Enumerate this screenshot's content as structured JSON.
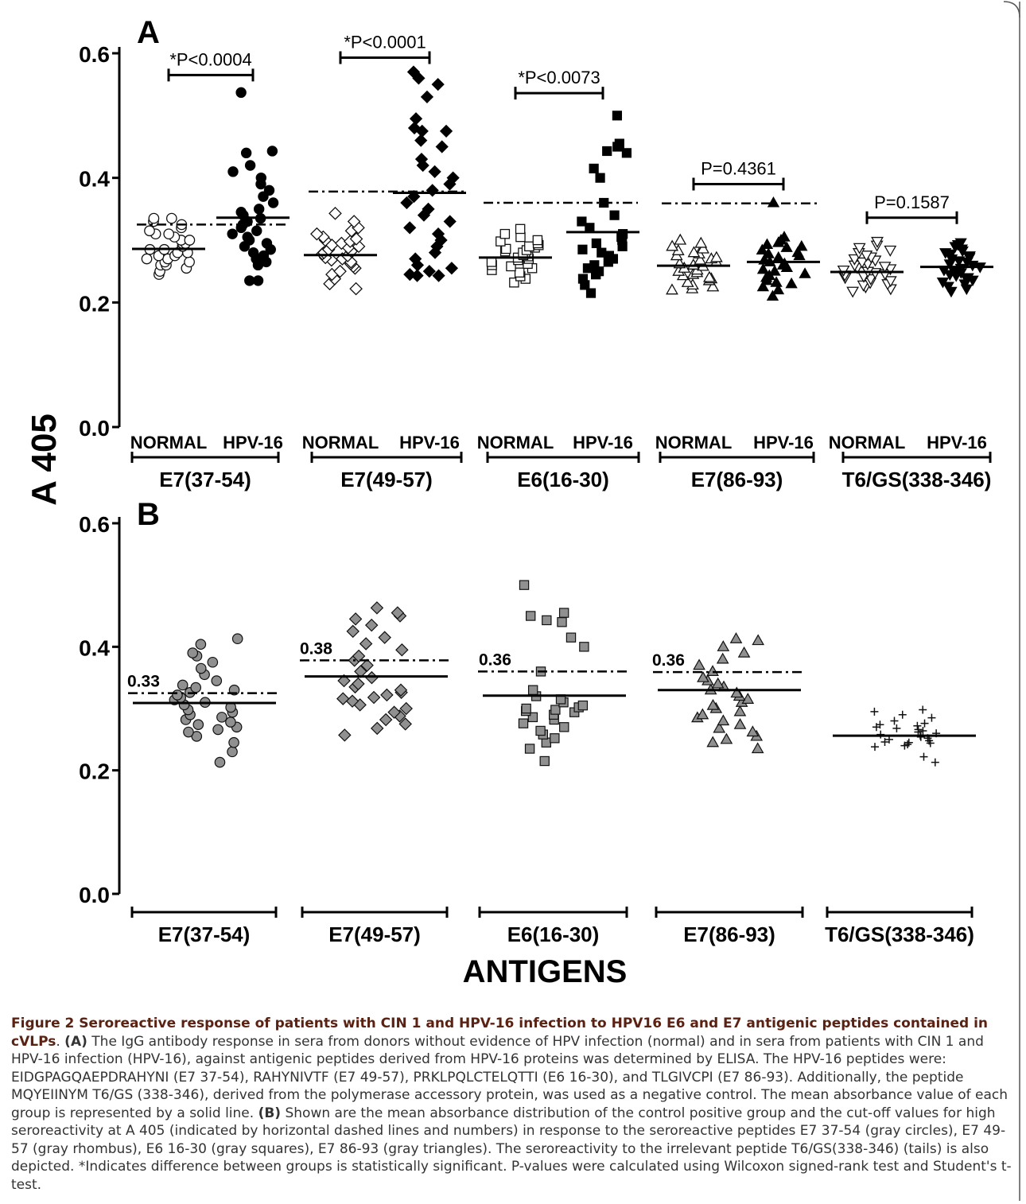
{
  "figure": {
    "ylabel": "A 405",
    "xlabel": "ANTIGENS"
  },
  "chart_data": [
    {
      "panel": "A",
      "type": "scatter",
      "ylim": [
        0.0,
        0.6
      ],
      "yticks": [
        "0.0",
        "0.2",
        "0.4",
        "0.6"
      ],
      "ylabel": "A 405",
      "group_labels": [
        "E7(37-54)",
        "E7(49-57)",
        "E6(16-30)",
        "E7(86-93)",
        "T6/GS(338-346)"
      ],
      "subgroup_labels": [
        "NORMAL",
        "HPV-16"
      ],
      "groups": [
        {
          "name": "E7(37-54)",
          "marker": "circle",
          "normal": [
            0.245,
            0.25,
            0.255,
            0.26,
            0.26,
            0.265,
            0.265,
            0.27,
            0.27,
            0.275,
            0.275,
            0.28,
            0.28,
            0.285,
            0.285,
            0.29,
            0.29,
            0.295,
            0.295,
            0.3,
            0.3,
            0.305,
            0.31,
            0.31,
            0.315,
            0.32,
            0.325,
            0.33,
            0.335,
            0.335
          ],
          "hpv16": [
            0.235,
            0.235,
            0.26,
            0.265,
            0.27,
            0.275,
            0.28,
            0.285,
            0.29,
            0.295,
            0.3,
            0.305,
            0.31,
            0.315,
            0.32,
            0.325,
            0.33,
            0.335,
            0.34,
            0.345,
            0.35,
            0.36,
            0.37,
            0.38,
            0.39,
            0.4,
            0.41,
            0.42,
            0.44,
            0.443,
            0.537
          ],
          "normal_mean": 0.286,
          "hpv16_mean": 0.336,
          "cutoff": 0.325,
          "pvalue": "*P<0.0004",
          "pvalue_y": 0.565
        },
        {
          "name": "E7(49-57)",
          "marker": "diamond",
          "normal": [
            0.222,
            0.23,
            0.238,
            0.245,
            0.25,
            0.255,
            0.258,
            0.262,
            0.265,
            0.268,
            0.27,
            0.272,
            0.275,
            0.278,
            0.28,
            0.282,
            0.285,
            0.288,
            0.29,
            0.292,
            0.295,
            0.298,
            0.3,
            0.302,
            0.305,
            0.31,
            0.315,
            0.32,
            0.33,
            0.343
          ],
          "hpv16": [
            0.243,
            0.243,
            0.245,
            0.25,
            0.255,
            0.26,
            0.27,
            0.28,
            0.29,
            0.3,
            0.31,
            0.32,
            0.33,
            0.34,
            0.35,
            0.36,
            0.37,
            0.38,
            0.39,
            0.4,
            0.41,
            0.42,
            0.43,
            0.45,
            0.46,
            0.475,
            0.475,
            0.48,
            0.495,
            0.53,
            0.55,
            0.56,
            0.57
          ],
          "normal_mean": 0.276,
          "hpv16_mean": 0.376,
          "cutoff": 0.378,
          "pvalue": "*P<0.0001",
          "pvalue_y": 0.593
        },
        {
          "name": "E6(16-30)",
          "marker": "square",
          "normal": [
            0.232,
            0.238,
            0.242,
            0.248,
            0.252,
            0.255,
            0.258,
            0.26,
            0.262,
            0.265,
            0.268,
            0.27,
            0.272,
            0.274,
            0.276,
            0.278,
            0.28,
            0.282,
            0.284,
            0.286,
            0.288,
            0.29,
            0.292,
            0.295,
            0.298,
            0.3,
            0.305,
            0.31,
            0.318
          ],
          "hpv16": [
            0.215,
            0.228,
            0.238,
            0.245,
            0.245,
            0.25,
            0.255,
            0.26,
            0.265,
            0.27,
            0.275,
            0.28,
            0.285,
            0.29,
            0.295,
            0.3,
            0.305,
            0.31,
            0.32,
            0.33,
            0.34,
            0.36,
            0.4,
            0.415,
            0.44,
            0.443,
            0.45,
            0.455,
            0.5
          ],
          "normal_mean": 0.272,
          "hpv16_mean": 0.313,
          "cutoff": 0.36,
          "pvalue": "*P<0.0073",
          "pvalue_y": 0.536
        },
        {
          "name": "E7(86-93)",
          "marker": "triangle-up",
          "normal": [
            0.22,
            0.222,
            0.225,
            0.228,
            0.232,
            0.235,
            0.238,
            0.24,
            0.243,
            0.245,
            0.248,
            0.25,
            0.252,
            0.255,
            0.258,
            0.26,
            0.262,
            0.265,
            0.268,
            0.27,
            0.272,
            0.275,
            0.278,
            0.28,
            0.283,
            0.286,
            0.29,
            0.295,
            0.3
          ],
          "hpv16": [
            0.21,
            0.22,
            0.225,
            0.23,
            0.232,
            0.235,
            0.24,
            0.243,
            0.246,
            0.25,
            0.253,
            0.256,
            0.26,
            0.262,
            0.265,
            0.268,
            0.27,
            0.272,
            0.275,
            0.278,
            0.28,
            0.284,
            0.288,
            0.29,
            0.293,
            0.296,
            0.3,
            0.305,
            0.36
          ],
          "normal_mean": 0.259,
          "hpv16_mean": 0.265,
          "cutoff": 0.359,
          "pvalue": "P=0.4361",
          "pvalue_y": 0.39
        },
        {
          "name": "T6/GS(338-346)",
          "marker": "triangle-down",
          "normal": [
            0.218,
            0.222,
            0.225,
            0.228,
            0.23,
            0.232,
            0.235,
            0.238,
            0.24,
            0.242,
            0.244,
            0.246,
            0.248,
            0.25,
            0.252,
            0.254,
            0.256,
            0.258,
            0.26,
            0.262,
            0.265,
            0.268,
            0.27,
            0.273,
            0.276,
            0.28,
            0.284,
            0.288,
            0.292,
            0.298
          ],
          "hpv16": [
            0.218,
            0.222,
            0.226,
            0.23,
            0.233,
            0.236,
            0.238,
            0.24,
            0.243,
            0.245,
            0.248,
            0.25,
            0.252,
            0.255,
            0.257,
            0.26,
            0.262,
            0.265,
            0.267,
            0.27,
            0.272,
            0.275,
            0.278,
            0.28,
            0.283,
            0.286,
            0.29,
            0.293,
            0.296
          ],
          "normal_mean": 0.249,
          "hpv16_mean": 0.257,
          "cutoff": null,
          "pvalue": "P=0.1587",
          "pvalue_y": 0.336
        }
      ]
    },
    {
      "panel": "B",
      "type": "scatter",
      "ylim": [
        0.0,
        0.6
      ],
      "yticks": [
        "0.0",
        "0.2",
        "0.4",
        "0.6"
      ],
      "xlabel": "ANTIGENS",
      "group_labels": [
        "E7(37-54)",
        "E7(49-57)",
        "E6(16-30)",
        "E7(86-93)",
        "T6/GS(338-346)"
      ],
      "groups": [
        {
          "name": "E7(37-54)",
          "marker": "circle",
          "values": [
            0.213,
            0.23,
            0.245,
            0.255,
            0.262,
            0.266,
            0.27,
            0.274,
            0.278,
            0.282,
            0.286,
            0.29,
            0.294,
            0.298,
            0.302,
            0.306,
            0.31,
            0.314,
            0.318,
            0.322,
            0.326,
            0.33,
            0.334,
            0.338,
            0.345,
            0.355,
            0.365,
            0.375,
            0.385,
            0.39,
            0.404,
            0.413
          ],
          "mean": 0.309,
          "cutoff": 0.325,
          "cutoff_label": "0.33"
        },
        {
          "name": "E7(49-57)",
          "marker": "diamond",
          "values": [
            0.257,
            0.268,
            0.275,
            0.282,
            0.288,
            0.294,
            0.3,
            0.306,
            0.312,
            0.316,
            0.318,
            0.322,
            0.326,
            0.33,
            0.335,
            0.34,
            0.345,
            0.35,
            0.36,
            0.37,
            0.378,
            0.385,
            0.395,
            0.405,
            0.415,
            0.425,
            0.435,
            0.445,
            0.45,
            0.455,
            0.463
          ],
          "mean": 0.352,
          "cutoff": 0.378,
          "cutoff_label": "0.38"
        },
        {
          "name": "E6(16-30)",
          "marker": "square",
          "values": [
            0.215,
            0.235,
            0.245,
            0.252,
            0.258,
            0.264,
            0.27,
            0.276,
            0.282,
            0.286,
            0.29,
            0.294,
            0.296,
            0.298,
            0.3,
            0.302,
            0.305,
            0.31,
            0.315,
            0.32,
            0.33,
            0.36,
            0.4,
            0.415,
            0.44,
            0.443,
            0.45,
            0.455,
            0.5
          ],
          "mean": 0.321,
          "cutoff": 0.36,
          "cutoff_label": "0.36"
        },
        {
          "name": "E7(86-93)",
          "marker": "triangle-up",
          "values": [
            0.235,
            0.245,
            0.25,
            0.255,
            0.262,
            0.268,
            0.274,
            0.28,
            0.285,
            0.29,
            0.295,
            0.3,
            0.305,
            0.31,
            0.315,
            0.32,
            0.325,
            0.33,
            0.335,
            0.34,
            0.345,
            0.35,
            0.36,
            0.37,
            0.38,
            0.39,
            0.4,
            0.41,
            0.413
          ],
          "mean": 0.33,
          "cutoff": 0.359,
          "cutoff_label": "0.36"
        },
        {
          "name": "T6/GS(338-346)",
          "marker": "plus",
          "values": [
            0.213,
            0.222,
            0.238,
            0.24,
            0.242,
            0.244,
            0.245,
            0.246,
            0.248,
            0.25,
            0.252,
            0.254,
            0.256,
            0.258,
            0.26,
            0.262,
            0.264,
            0.266,
            0.268,
            0.27,
            0.272,
            0.274,
            0.276,
            0.28,
            0.285,
            0.29,
            0.295,
            0.298
          ],
          "mean": 0.256,
          "cutoff": null,
          "cutoff_label": ""
        }
      ]
    }
  ],
  "caption": {
    "title": "Figure 2 Seroreactive response of patients with CIN 1 and HPV-16 infection to HPV16 E6 and E7 antigenic peptides contained in cVLPs",
    "title_suffix": ". ",
    "label_a": "(A)",
    "text_a": " The IgG antibody response in sera from donors without evidence of HPV infection (normal) and in sera from patients with CIN 1 and HPV-16 infection (HPV-16), against antigenic peptides derived from HPV-16 proteins was determined by ELISA. The HPV-16 peptides were: EIDGPAGQAEPDRAHYNI (E7 37-54), RAHYNIVTF (E7 49-57), PRKLPQLCTELQTTI (E6 16-30), and TLGIVCPI (E7 86-93). Additionally, the peptide MQYEIINYM T6/GS (338-346), derived from the polymerase accessory protein, was used as a negative control. The mean absorbance value of each group is represented by a solid line. ",
    "label_b": "(B)",
    "text_b": " Shown are the mean absorbance distribution of the control positive group and the cut-off values for high seroreactivity at A 405 (indicated by horizontal dashed lines and numbers) in response to the seroreactive peptides E7 37-54 (gray circles), E7 49-57 (gray rhombus), E6 16-30 (gray squares), E7 86-93 (gray triangles). The seroreactivity to the irrelevant peptide T6/GS(338-346) (tails) is also depicted. *Indicates difference between groups is statistically significant. P-values were calculated using Wilcoxon signed-rank test and Student's t-test."
  }
}
